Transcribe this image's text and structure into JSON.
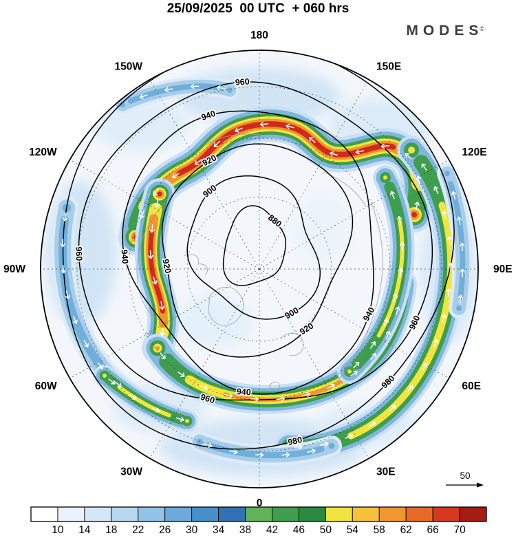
{
  "header": {
    "title": "25/09/2025  00 UTC  + 060 hrs",
    "logo": "MODES",
    "logo_mark": "©"
  },
  "map": {
    "lon_labels": [
      {
        "text": "180",
        "lon": 180
      },
      {
        "text": "150E",
        "lon": 150
      },
      {
        "text": "120E",
        "lon": 120
      },
      {
        "text": "90E",
        "lon": 90
      },
      {
        "text": "60E",
        "lon": 60
      },
      {
        "text": "30E",
        "lon": 30
      },
      {
        "text": "0",
        "lon": 0
      },
      {
        "text": "30W",
        "lon": -30
      },
      {
        "text": "60W",
        "lon": -60
      },
      {
        "text": "90W",
        "lon": -90
      },
      {
        "text": "120W",
        "lon": -120
      },
      {
        "text": "150W",
        "lon": -150
      }
    ],
    "contour_labels": [
      "880",
      "900",
      "920",
      "940",
      "960",
      "980"
    ],
    "vector_scale": {
      "value": "50"
    }
  },
  "colorbar": {
    "ticks": [
      10,
      14,
      18,
      22,
      26,
      30,
      34,
      38,
      42,
      46,
      50,
      54,
      58,
      62,
      66,
      70
    ],
    "colors": [
      "#ffffff",
      "#eaf3fb",
      "#d4e7f6",
      "#b7d8f0",
      "#93c3e6",
      "#6baad9",
      "#478fc8",
      "#3272b4",
      "#62b25a",
      "#3f9e4d",
      "#2c8a40",
      "#f2e43e",
      "#f6c13a",
      "#f1972f",
      "#e76b25",
      "#d6391f",
      "#a51c15"
    ]
  },
  "chart_data": {
    "type": "heatmap",
    "title": "25/09/2025  00 UTC  + 060 hrs",
    "description": "Northern-hemisphere polar stereographic chart: shaded wind speed with overlaid height contours and white wind-direction arrows (MODES model, forecast +060 hrs)",
    "projection": "north_polar_stereographic",
    "longitude_labels": [
      "180",
      "150E",
      "120E",
      "90E",
      "60E",
      "30E",
      "0",
      "30W",
      "60W",
      "90W",
      "120W",
      "150W"
    ],
    "contour_levels": [
      880,
      900,
      920,
      940,
      960,
      980
    ],
    "shading_scale": {
      "ticks": [
        10,
        14,
        18,
        22,
        26,
        30,
        34,
        38,
        42,
        46,
        50,
        54,
        58,
        62,
        66,
        70
      ],
      "colors": [
        "#ffffff",
        "#eaf3fb",
        "#d4e7f6",
        "#b7d8f0",
        "#93c3e6",
        "#6baad9",
        "#478fc8",
        "#3272b4",
        "#62b25a",
        "#3f9e4d",
        "#2c8a40",
        "#f2e43e",
        "#f6c13a",
        "#f1972f",
        "#e76b25",
        "#d6391f",
        "#a51c15"
      ]
    },
    "vector_reference_value": 50,
    "branding": "MODES©",
    "legend_position": "bottom",
    "grid": "dashed graticule, 30-degree meridians"
  }
}
